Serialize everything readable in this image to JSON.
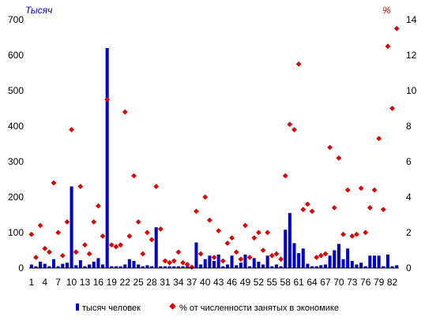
{
  "chart_data": {
    "type": "bar+scatter",
    "y_left_unit": "Тысяч",
    "y_right_unit": "%",
    "y_left_range": [
      0,
      700
    ],
    "y_left_ticks": [
      "0",
      "100",
      "200",
      "300",
      "400",
      "500",
      "600",
      "700"
    ],
    "y_right_range": [
      0,
      14
    ],
    "y_right_ticks": [
      "0",
      "2",
      "4",
      "6",
      "8",
      "10",
      "12",
      "14"
    ],
    "x_tick_labels": [
      "1",
      "4",
      "7",
      "10",
      "13",
      "16",
      "19",
      "22",
      "25",
      "28",
      "31",
      "34",
      "37",
      "40",
      "43",
      "46",
      "49",
      "52",
      "55",
      "58",
      "61",
      "64",
      "67",
      "70",
      "73",
      "76",
      "79",
      "82"
    ],
    "categories": [
      1,
      2,
      3,
      4,
      5,
      6,
      7,
      8,
      9,
      10,
      11,
      12,
      13,
      14,
      15,
      16,
      17,
      18,
      19,
      20,
      21,
      22,
      23,
      24,
      25,
      26,
      27,
      28,
      29,
      30,
      31,
      32,
      33,
      34,
      35,
      36,
      37,
      38,
      39,
      40,
      41,
      42,
      43,
      44,
      45,
      46,
      47,
      48,
      49,
      50,
      51,
      52,
      53,
      54,
      55,
      56,
      57,
      58,
      59,
      60,
      61,
      62,
      63,
      64,
      65,
      66,
      67,
      68,
      69,
      70,
      71,
      72,
      73,
      74,
      75,
      76,
      77,
      78,
      79,
      80,
      81,
      82,
      83
    ],
    "series": [
      {
        "name": "тысяч человек",
        "axis": "left",
        "color": "#0000cc",
        "values": [
          10,
          5,
          18,
          12,
          5,
          25,
          5,
          12,
          15,
          230,
          8,
          22,
          5,
          10,
          18,
          28,
          10,
          620,
          5,
          5,
          5,
          10,
          25,
          20,
          10,
          5,
          8,
          5,
          115,
          5,
          5,
          5,
          5,
          5,
          5,
          5,
          5,
          72,
          10,
          25,
          35,
          20,
          38,
          5,
          10,
          35,
          8,
          15,
          38,
          5,
          28,
          18,
          10,
          35,
          5,
          10,
          5,
          108,
          155,
          70,
          42,
          55,
          12,
          5,
          5,
          8,
          10,
          35,
          50,
          68,
          25,
          55,
          20,
          10,
          15,
          5,
          35,
          35,
          35,
          5,
          38,
          5,
          8
        ]
      },
      {
        "name": "% от численности занятых в экономике",
        "axis": "right",
        "color": "#dd0000",
        "values": [
          1.9,
          0.6,
          2.4,
          1.1,
          0.9,
          4.8,
          2.0,
          0.7,
          2.6,
          7.8,
          0.9,
          4.6,
          1.3,
          0.8,
          2.6,
          3.5,
          1.8,
          9.5,
          1.3,
          1.2,
          1.3,
          8.8,
          1.8,
          5.2,
          2.6,
          0.8,
          2.0,
          1.6,
          4.6,
          2.2,
          0.4,
          0.3,
          0.4,
          0.9,
          0.3,
          0.2,
          0.05,
          3.2,
          0.8,
          4.0,
          2.7,
          0.6,
          2.1,
          0.4,
          1.4,
          1.7,
          0.9,
          0.5,
          2.4,
          0.6,
          1.7,
          2.0,
          1.0,
          2.0,
          0.7,
          0.8,
          0.5,
          5.2,
          8.1,
          7.8,
          11.5,
          3.3,
          3.6,
          3.2,
          0.6,
          0.7,
          0.8,
          6.8,
          3.4,
          6.2,
          1.9,
          4.4,
          1.8,
          1.9,
          4.5,
          2.0,
          3.4,
          4.4,
          7.3,
          3.3,
          12.5,
          9.0,
          13.5
        ]
      }
    ],
    "grid": false,
    "legend_placement": "bottom"
  }
}
